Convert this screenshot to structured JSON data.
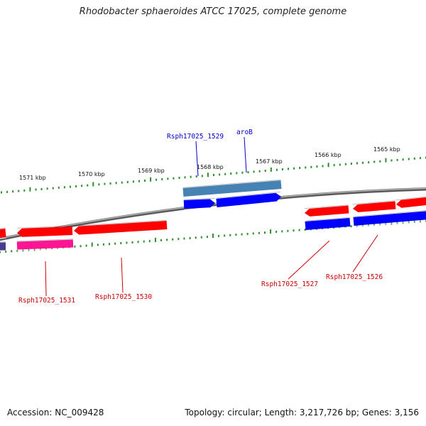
{
  "title": "Rhodobacter sphaeroides ATCC 17025, complete genome",
  "accession": "Accession: NC_009428",
  "topology": "Topology: circular; Length: 3,217,726 bp; Genes: 3,156",
  "colors": {
    "backbone": "#808080",
    "ticks": "#2e8b2e",
    "forward_gene": "#ff0000",
    "reverse_gene": "#0000ff",
    "rna_gene": "#4682b4",
    "pseudo_gene": "#ff1493",
    "other_gene": "#483d8b",
    "label_blue": "#0000cc",
    "label_red": "#cc0000"
  },
  "kbp_labels": [
    {
      "kbp": 1571,
      "text": "1571 kbp"
    },
    {
      "kbp": 1570,
      "text": "1570 kbp"
    },
    {
      "kbp": 1569,
      "text": "1569 kbp"
    },
    {
      "kbp": 1568,
      "text": "1568 kbp"
    },
    {
      "kbp": 1567,
      "text": "1567 kbp"
    },
    {
      "kbp": 1566,
      "text": "1566 kbp"
    },
    {
      "kbp": 1565,
      "text": "1565 kbp"
    }
  ],
  "gene_labels": [
    {
      "name": "Rsph17025_1529",
      "color": "blue"
    },
    {
      "name": "aroB",
      "color": "blue"
    },
    {
      "name": "Rsph17025_1531",
      "color": "red"
    },
    {
      "name": "Rsph17025_1530",
      "color": "red"
    },
    {
      "name": "Rsph17025_1527",
      "color": "red"
    },
    {
      "name": "Rsph17025_1526",
      "color": "red"
    }
  ]
}
